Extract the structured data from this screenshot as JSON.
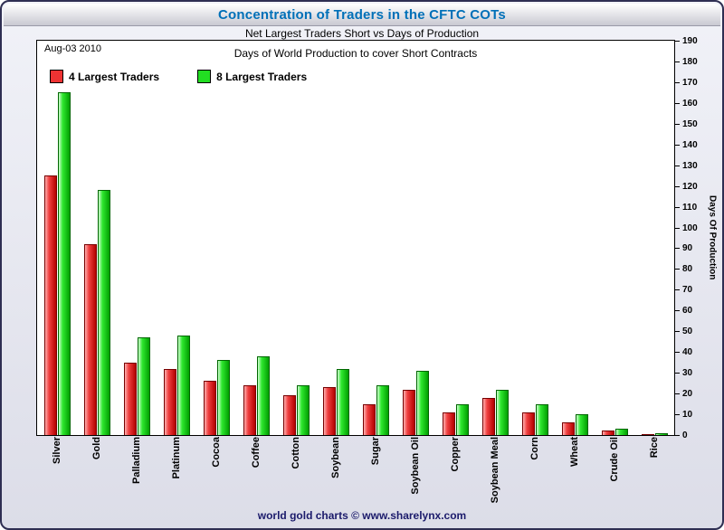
{
  "header": {
    "title": "Concentration of Traders in the CFTC COTs"
  },
  "subtitle": "Net Largest Traders Short vs Days of Production",
  "inner_title": "Days of World Production to cover Short Contracts",
  "date_label": "Aug-03 2010",
  "legend": [
    {
      "label": "4 Largest Traders",
      "color": "#ee3333"
    },
    {
      "label": "8 Largest Traders",
      "color": "#22dd22"
    }
  ],
  "y_axis_title": "Days Of Production",
  "footer": {
    "prefix": "world gold charts © ",
    "link": "www.sharelynx.com"
  },
  "colors": {
    "title": "#0070b8",
    "footer": "#1b1b6b",
    "bar_red": "#ee3333",
    "bar_green": "#22dd22",
    "frame_border": "#2e2e52"
  },
  "chart_data": {
    "type": "bar",
    "title": "Days of World Production to cover Short Contracts",
    "categories": [
      "Silver",
      "Gold",
      "Palladium",
      "Platinum",
      "Cocoa",
      "Coffee",
      "Cotton",
      "Soybean",
      "Sugar",
      "Soybean Oil",
      "Copper",
      "Soybean Meal",
      "Corn",
      "Wheat",
      "Crude Oil",
      "Rice"
    ],
    "series": [
      {
        "name": "4 Largest Traders",
        "color": "#ee3333",
        "values": [
          125,
          92,
          35,
          32,
          26,
          24,
          19,
          23,
          15,
          22,
          11,
          18,
          11,
          6,
          2,
          0.5
        ]
      },
      {
        "name": "8 Largest Traders",
        "color": "#22dd22",
        "values": [
          165,
          118,
          47,
          48,
          36,
          38,
          24,
          32,
          24,
          31,
          15,
          22,
          15,
          10,
          3,
          1
        ]
      }
    ],
    "xlabel": "",
    "ylabel": "Days Of Production",
    "ylim": [
      0,
      190
    ],
    "ytick_step": 10,
    "grid": false,
    "legend_position": "top-left"
  }
}
